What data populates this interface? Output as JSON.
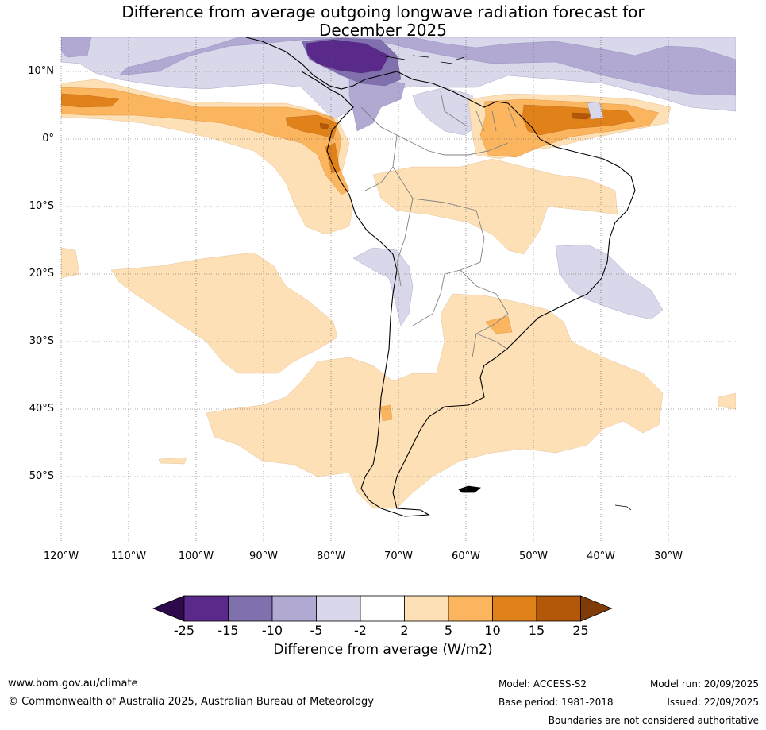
{
  "title": {
    "line1": "Difference from average outgoing longwave radiation forecast for",
    "line2": "December 2025"
  },
  "map": {
    "lat_labels": [
      "10°N",
      "0°",
      "10°S",
      "20°S",
      "30°S",
      "40°S",
      "50°S"
    ],
    "lon_labels": [
      "120°W",
      "110°W",
      "100°W",
      "90°W",
      "80°W",
      "70°W",
      "60°W",
      "50°W",
      "40°W",
      "30°W"
    ],
    "extent": {
      "lon_min": -120,
      "lon_max": -20,
      "lat_min": -60,
      "lat_max": 15
    },
    "gridline_style": "dotted"
  },
  "colorbar": {
    "tick_labels": [
      "-25",
      "-15",
      "-10",
      "-5",
      "-2",
      "2",
      "5",
      "10",
      "15",
      "25"
    ],
    "colors": [
      "#2d0a4b",
      "#5a2a8a",
      "#8070ad",
      "#b1a9d2",
      "#d8d8ea",
      "#ffffff",
      "#fde0b6",
      "#fbb55f",
      "#e0811a",
      "#b35808",
      "#7f3b08"
    ],
    "title": "Difference from average (W/m2)",
    "extend": "both"
  },
  "footer": {
    "website": "www.bom.gov.au/climate",
    "copyright": "© Commonwealth of Australia 2025, Australian Bureau of Meteorology",
    "model": "Model: ACCESS-S2",
    "base_period": "Base period: 1981-2018",
    "model_run": "Model run: 20/09/2025",
    "issued": "Issued: 22/09/2025",
    "disclaimer": "Boundaries are not considered authoritative"
  }
}
